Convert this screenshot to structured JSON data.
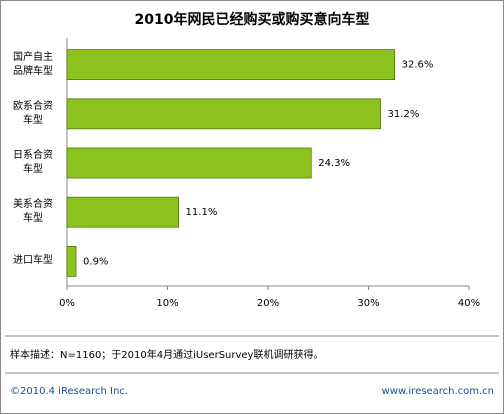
{
  "chart_data": {
    "type": "bar",
    "orientation": "horizontal",
    "title": "2010年网民已经购买或购买意向车型",
    "categories": [
      "国产自主品牌车型",
      "欧系合资车型",
      "日系合资车型",
      "美系合资车型",
      "进口车型"
    ],
    "values": [
      32.6,
      31.2,
      24.3,
      11.1,
      0.9
    ],
    "value_labels": [
      "32.6%",
      "31.2%",
      "24.3%",
      "11.1%",
      "0.9%"
    ],
    "color": "#8cc21e",
    "xlim": [
      0,
      40
    ],
    "xticks": [
      {
        "value": 0,
        "label": "0%"
      },
      {
        "value": 10,
        "label": "10%"
      },
      {
        "value": 20,
        "label": "20%"
      },
      {
        "value": 30,
        "label": "30%"
      },
      {
        "value": 40,
        "label": "40%"
      }
    ],
    "grid": false,
    "note": "样本描述：N=1160；于2010年4月通过iUserSurvey联机调研获得。",
    "copyright": "©2010.4 iResearch Inc.",
    "website": "www.iresearch.com.cn"
  }
}
